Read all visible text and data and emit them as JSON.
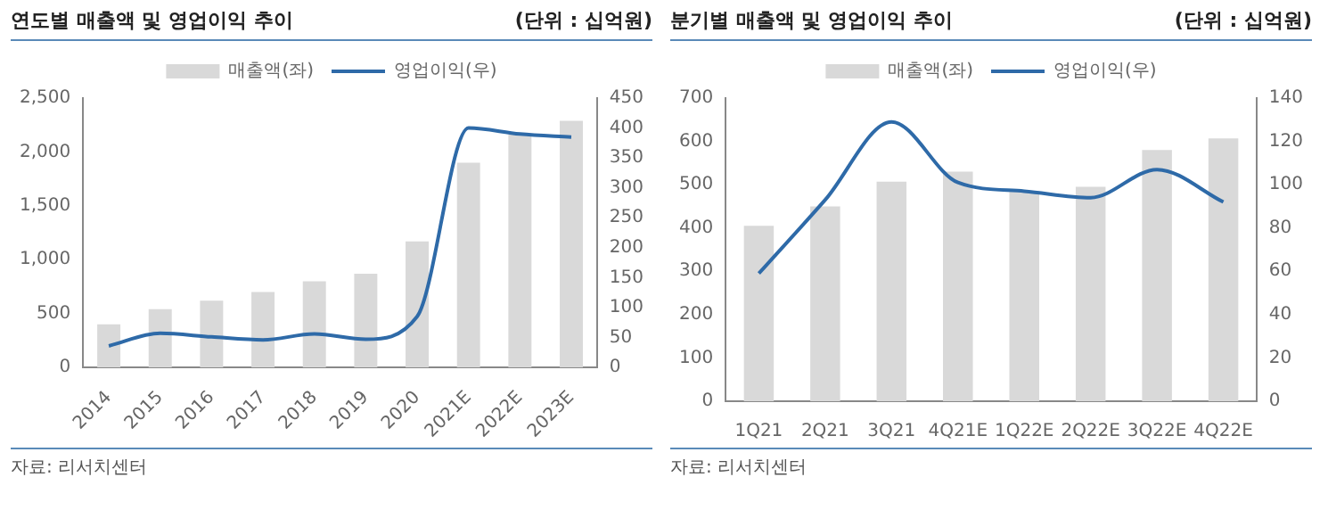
{
  "chart_data": [
    {
      "type": "bar",
      "title": "연도별 매출액 및 영업이익 추이",
      "subtitle": "(단위 : 십억원)",
      "categories": [
        "2014",
        "2015",
        "2016",
        "2017",
        "2018",
        "2019",
        "2020",
        "2021E",
        "2022E",
        "2023E"
      ],
      "series": [
        {
          "name": "매출액(좌)",
          "color": "#d9d9d9",
          "values": [
            400,
            540,
            620,
            700,
            800,
            870,
            1170,
            1900,
            2160,
            2290
          ]
        },
        {
          "name": "영업이익(우)",
          "type": "line",
          "axis": "y2",
          "color": "#2e6aa8",
          "values": [
            36,
            57,
            51,
            46,
            56,
            47,
            85,
            400,
            390,
            385
          ]
        }
      ],
      "ylim": [
        0,
        2500
      ],
      "yticks": [
        {
          "value": 0,
          "label": "0"
        },
        {
          "value": 500,
          "label": "500"
        },
        {
          "value": 1000,
          "label": "1,000"
        },
        {
          "value": 1500,
          "label": "1,500"
        },
        {
          "value": 2000,
          "label": "2,000"
        },
        {
          "value": 2500,
          "label": "2,500"
        }
      ],
      "y2lim": [
        0,
        450
      ],
      "y2ticks": [
        0,
        50,
        100,
        150,
        200,
        250,
        300,
        350,
        400,
        450
      ],
      "legend": "top",
      "grid": false,
      "marker": "none",
      "annotations": [
        "자료: 리서치센터"
      ]
    },
    {
      "type": "bar",
      "title": "분기별 매출액 및 영업이익 추이",
      "subtitle": "(단위 : 십억원)",
      "categories": [
        "1Q21",
        "2Q21",
        "3Q21",
        "4Q21E",
        "1Q22E",
        "2Q22E",
        "3Q22E",
        "4Q22E"
      ],
      "series": [
        {
          "name": "매출액(좌)",
          "color": "#d9d9d9",
          "values": [
            405,
            450,
            507,
            530,
            485,
            495,
            580,
            607
          ]
        },
        {
          "name": "영업이익(우)",
          "type": "line",
          "axis": "y2",
          "color": "#2e6aa8",
          "values": [
            59,
            93,
            129,
            101,
            97,
            94,
            107,
            92
          ]
        }
      ],
      "ylim": [
        0,
        700
      ],
      "yticks": [
        0,
        100,
        200,
        300,
        400,
        500,
        600,
        700
      ],
      "y2lim": [
        0,
        140
      ],
      "y2ticks": [
        0,
        20,
        40,
        60,
        80,
        100,
        120,
        140
      ],
      "legend": "top",
      "grid": false,
      "marker": "none",
      "annotations": [
        "자료: 리서치센터"
      ]
    }
  ]
}
